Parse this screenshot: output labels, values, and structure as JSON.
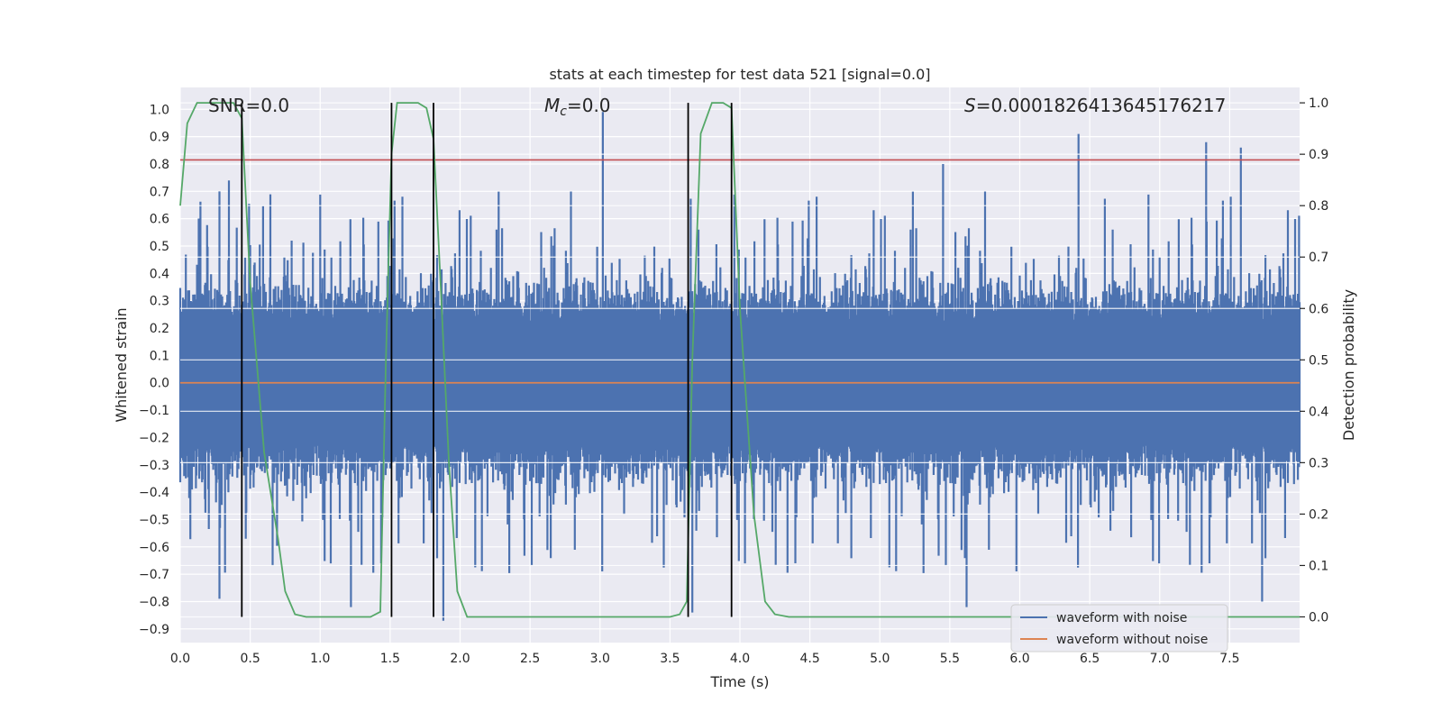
{
  "chart_data": {
    "type": "line",
    "title": "stats at each timestep for test data 521 [signal=0.0]",
    "xlabel": "Time (s)",
    "ylabel": "Whitened strain",
    "y2label": "Detection probability",
    "xlim": [
      0.0,
      8.0
    ],
    "ylim": [
      -0.95,
      1.08
    ],
    "y2lim": [
      -0.05,
      1.03
    ],
    "xticks": [
      "0.0",
      "0.5",
      "1.0",
      "1.5",
      "2.0",
      "2.5",
      "3.0",
      "3.5",
      "4.0",
      "4.5",
      "5.0",
      "5.5",
      "6.0",
      "6.5",
      "7.0",
      "7.5"
    ],
    "yticks": [
      "1.0",
      "0.9",
      "0.8",
      "0.7",
      "0.6",
      "0.5",
      "0.4",
      "0.3",
      "0.2",
      "0.1",
      "0.0",
      "-0.1",
      "-0.2",
      "-0.3",
      "-0.4",
      "-0.5",
      "-0.6",
      "-0.7",
      "-0.8",
      "-0.9"
    ],
    "y2ticks": [
      "1.0",
      "0.9",
      "0.8",
      "0.7",
      "0.6",
      "0.5",
      "0.4",
      "0.3",
      "0.2",
      "0.1",
      "0.0"
    ],
    "grid": true,
    "legend_position": "lower-right",
    "annotations": {
      "snr": "SNR=0.0",
      "mc_symbol": "M",
      "mc_subscript": "c",
      "mc_value": "=0.0",
      "s_symbol": "S",
      "s_value": "=0.0001826413645176217"
    },
    "series": [
      {
        "name": "waveform with noise",
        "color": "#4c72b0",
        "axis": "left",
        "envelope_note": "dense noise, amplitude approx 0.4 typical",
        "max_points": [
          [
            0.35,
            0.74
          ],
          [
            3.02,
            0.99
          ],
          [
            6.42,
            0.91
          ],
          [
            7.33,
            0.88
          ],
          [
            7.58,
            0.86
          ],
          [
            5.45,
            0.8
          ]
        ],
        "min_points": [
          [
            0.28,
            -0.79
          ],
          [
            1.22,
            -0.82
          ],
          [
            1.88,
            -0.87
          ],
          [
            5.62,
            -0.82
          ],
          [
            7.73,
            -0.8
          ],
          [
            3.66,
            -0.84
          ]
        ]
      },
      {
        "name": "waveform without noise",
        "color": "#dd8452",
        "axis": "left",
        "x": [
          0.0,
          8.0
        ],
        "y": [
          0.0,
          0.0
        ]
      },
      {
        "name": "",
        "color": "#55a868",
        "axis": "right",
        "x": [
          0.0,
          0.05,
          0.12,
          0.2,
          0.3,
          0.38,
          0.44,
          0.5,
          0.6,
          0.7,
          0.75,
          0.82,
          0.9,
          1.0,
          1.2,
          1.36,
          1.43,
          1.47,
          1.51,
          1.55,
          1.6,
          1.7,
          1.76,
          1.81,
          1.86,
          1.92,
          1.98,
          2.05,
          2.15,
          2.6,
          3.0,
          3.5,
          3.57,
          3.62,
          3.66,
          3.72,
          3.8,
          3.88,
          3.94,
          4.0,
          4.1,
          4.18,
          4.25,
          4.35,
          8.0
        ],
        "y": [
          0.8,
          0.96,
          1.0,
          1.0,
          1.0,
          1.0,
          0.97,
          0.65,
          0.32,
          0.15,
          0.05,
          0.005,
          0.0,
          0.0,
          0.0,
          0.0,
          0.01,
          0.5,
          0.9,
          1.0,
          1.0,
          1.0,
          0.99,
          0.93,
          0.65,
          0.3,
          0.05,
          0.0,
          0.0,
          0.0,
          0.0,
          0.0,
          0.005,
          0.03,
          0.5,
          0.94,
          1.0,
          1.0,
          0.99,
          0.6,
          0.2,
          0.03,
          0.005,
          0.0,
          0.0
        ]
      },
      {
        "name": "",
        "color": "#c44e52",
        "axis": "left",
        "type": "hline",
        "y": 0.815
      }
    ],
    "vertical_lines": {
      "color": "#000000",
      "x": [
        0.44,
        1.51,
        1.81,
        3.63,
        3.94
      ]
    }
  }
}
